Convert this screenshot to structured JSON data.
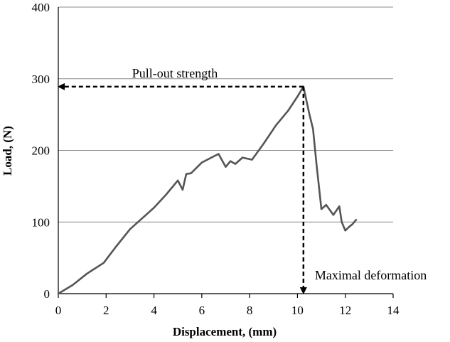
{
  "chart_data": {
    "type": "line",
    "xlabel": "Displacement, (mm)",
    "ylabel": "Load, (N)",
    "xlim": [
      0,
      14
    ],
    "ylim": [
      0,
      400
    ],
    "xticks": [
      0,
      2,
      4,
      6,
      8,
      10,
      12,
      14
    ],
    "yticks": [
      0,
      100,
      200,
      300,
      400
    ],
    "grid": "horizontal",
    "colors": {
      "series": "#555555",
      "grid": "#8a8a8a",
      "annotation": "#000000"
    },
    "series": [
      {
        "x": [
          0,
          0.6,
          1.2,
          1.9,
          2.4,
          3.0,
          3.5,
          4.0,
          4.5,
          5.0,
          5.2,
          5.35,
          5.55,
          6.0,
          6.4,
          6.7,
          7.0,
          7.2,
          7.4,
          7.7,
          8.1,
          8.6,
          9.1,
          9.6,
          10.0,
          10.25,
          10.5,
          10.65,
          10.8,
          11.0,
          11.2,
          11.5,
          11.75,
          11.85,
          12.0,
          12.15,
          12.3,
          12.45
        ],
        "y": [
          0,
          12,
          28,
          43,
          65,
          90,
          105,
          120,
          138,
          158,
          145,
          167,
          168,
          183,
          190,
          195,
          177,
          185,
          181,
          190,
          187,
          210,
          235,
          255,
          275,
          289,
          250,
          230,
          180,
          118,
          124,
          110,
          122,
          100,
          88,
          93,
          97,
          103
        ]
      }
    ],
    "annotations": [
      {
        "label": "Pull-out strength",
        "x": 10.25,
        "y": 289
      },
      {
        "label": "Maximal deformation",
        "x": 10.25,
        "y": 289
      }
    ]
  }
}
